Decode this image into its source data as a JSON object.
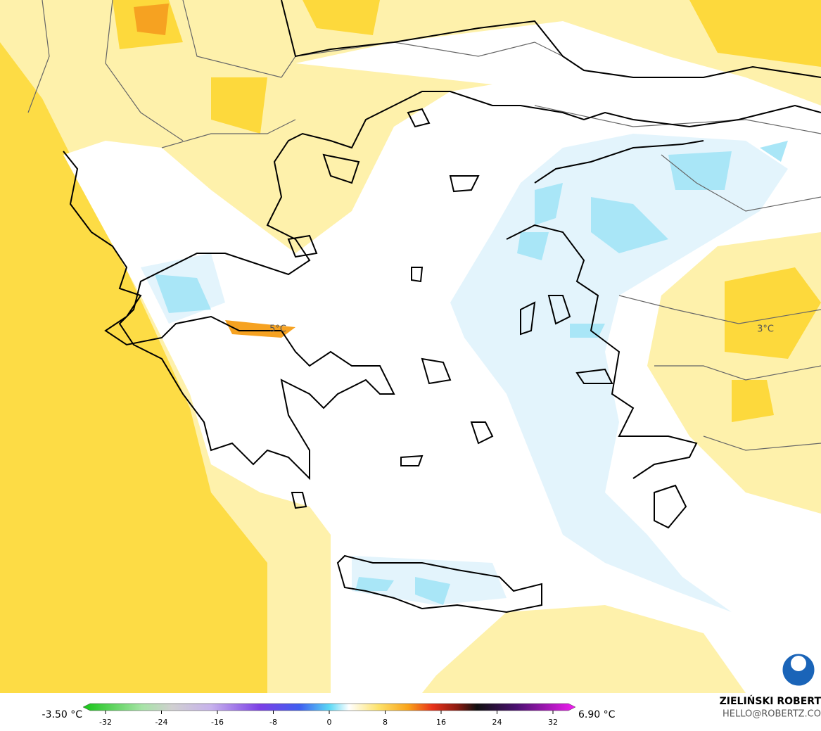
{
  "map": {
    "labels": [
      "5°C",
      "3°C"
    ]
  },
  "colorbar": {
    "min_label": "-3.50 °C",
    "max_label": "6.90 °C",
    "ticks": [
      -32,
      -24,
      -16,
      -8,
      0,
      8,
      16,
      24,
      32
    ]
  },
  "credit": {
    "name": "ZIELIŃSKI ROBERT",
    "email": "HELLO@ROBERTZ.CO"
  }
}
